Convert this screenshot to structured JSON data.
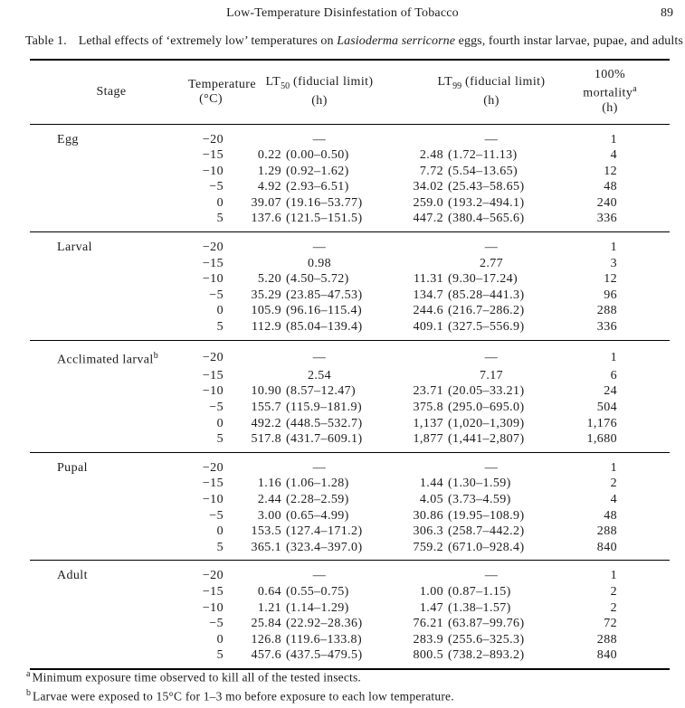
{
  "page": {
    "running_head": "Low-Temperature Disinfestation of Tobacco",
    "page_number": "89"
  },
  "caption": {
    "label": "Table 1.",
    "text_before_species": "Lethal effects of ‘extremely low’ temperatures on ",
    "species": "Lasioderma serricorne",
    "text_after_species": " eggs, fourth instar larvae, pupae, and adults"
  },
  "table": {
    "columns": {
      "stage": "Stage",
      "temperature_line1": "Temperature",
      "temperature_line2": "(°C)",
      "lt_prefix": "LT",
      "lt50_sub": "50",
      "lt99_sub": "99",
      "lt_suffix": " (fiducial limit)",
      "hours_unit": "(h)",
      "mortality_line1": "100%",
      "mortality_line2": "mortality",
      "mortality_sup": "a"
    },
    "sections": [
      {
        "stage": "Egg",
        "stage_sup": "",
        "rows": [
          [
            "−20",
            "—",
            "",
            "—",
            "",
            "1"
          ],
          [
            "−15",
            "0.22",
            "(0.00–0.50)",
            "2.48",
            "(1.72–11.13)",
            "4"
          ],
          [
            "−10",
            "1.29",
            "(0.92–1.62)",
            "7.72",
            "(5.54–13.65)",
            "12"
          ],
          [
            "−5",
            "4.92",
            "(2.93–6.51)",
            "34.02",
            "(25.43–58.65)",
            "48"
          ],
          [
            "0",
            "39.07",
            "(19.16–53.77)",
            "259.0",
            "(193.2–494.1)",
            "240"
          ],
          [
            "5",
            "137.6",
            "(121.5–151.5)",
            "447.2",
            "(380.4–565.6)",
            "336"
          ]
        ]
      },
      {
        "stage": "Larval",
        "stage_sup": "",
        "rows": [
          [
            "−20",
            "—",
            "",
            "—",
            "",
            "1"
          ],
          [
            "−15",
            "0.98",
            "",
            "2.77",
            "",
            "3"
          ],
          [
            "−10",
            "5.20",
            "(4.50–5.72)",
            "11.31",
            "(9.30–17.24)",
            "12"
          ],
          [
            "−5",
            "35.29",
            "(23.85–47.53)",
            "134.7",
            "(85.28–441.3)",
            "96"
          ],
          [
            "0",
            "105.9",
            "(96.16–115.4)",
            "244.6",
            "(216.7–286.2)",
            "288"
          ],
          [
            "5",
            "112.9",
            "(85.04–139.4)",
            "409.1",
            "(327.5–556.9)",
            "336"
          ]
        ]
      },
      {
        "stage": "Acclimated larval",
        "stage_sup": "b",
        "rows": [
          [
            "−20",
            "—",
            "",
            "—",
            "",
            "1"
          ],
          [
            "−15",
            "2.54",
            "",
            "7.17",
            "",
            "6"
          ],
          [
            "−10",
            "10.90",
            "(8.57–12.47)",
            "23.71",
            "(20.05–33.21)",
            "24"
          ],
          [
            "−5",
            "155.7",
            "(115.9–181.9)",
            "375.8",
            "(295.0–695.0)",
            "504"
          ],
          [
            "0",
            "492.2",
            "(448.5–532.7)",
            "1,137",
            "(1,020–1,309)",
            "1,176"
          ],
          [
            "5",
            "517.8",
            "(431.7–609.1)",
            "1,877",
            "(1,441–2,807)",
            "1,680"
          ]
        ]
      },
      {
        "stage": "Pupal",
        "stage_sup": "",
        "rows": [
          [
            "−20",
            "—",
            "",
            "—",
            "",
            "1"
          ],
          [
            "−15",
            "1.16",
            "(1.06–1.28)",
            "1.44",
            "(1.30–1.59)",
            "2"
          ],
          [
            "−10",
            "2.44",
            "(2.28–2.59)",
            "4.05",
            "(3.73–4.59)",
            "4"
          ],
          [
            "−5",
            "3.00",
            "(0.65–4.99)",
            "30.86",
            "(19.95–108.9)",
            "48"
          ],
          [
            "0",
            "153.5",
            "(127.4–171.2)",
            "306.3",
            "(258.7–442.2)",
            "288"
          ],
          [
            "5",
            "365.1",
            "(323.4–397.0)",
            "759.2",
            "(671.0–928.4)",
            "840"
          ]
        ]
      },
      {
        "stage": "Adult",
        "stage_sup": "",
        "rows": [
          [
            "−20",
            "—",
            "",
            "—",
            "",
            "1"
          ],
          [
            "−15",
            "0.64",
            "(0.55–0.75)",
            "1.00",
            "(0.87–1.15)",
            "2"
          ],
          [
            "−10",
            "1.21",
            "(1.14–1.29)",
            "1.47",
            "(1.38–1.57)",
            "2"
          ],
          [
            "−5",
            "25.84",
            "(22.92–28.36)",
            "76.21",
            "(63.87–99.76)",
            "72"
          ],
          [
            "0",
            "126.8",
            "(119.6–133.8)",
            "283.9",
            "(255.6–325.3)",
            "288"
          ],
          [
            "5",
            "457.6",
            "(437.5–479.5)",
            "800.5",
            "(738.2–893.2)",
            "840"
          ]
        ]
      }
    ]
  },
  "footnotes": [
    {
      "marker": "a",
      "text": "Minimum exposure time observed to kill all of the tested insects."
    },
    {
      "marker": "b",
      "text": "Larvae were exposed to 15°C for 1–3 mo before exposure to each low temperature."
    }
  ]
}
